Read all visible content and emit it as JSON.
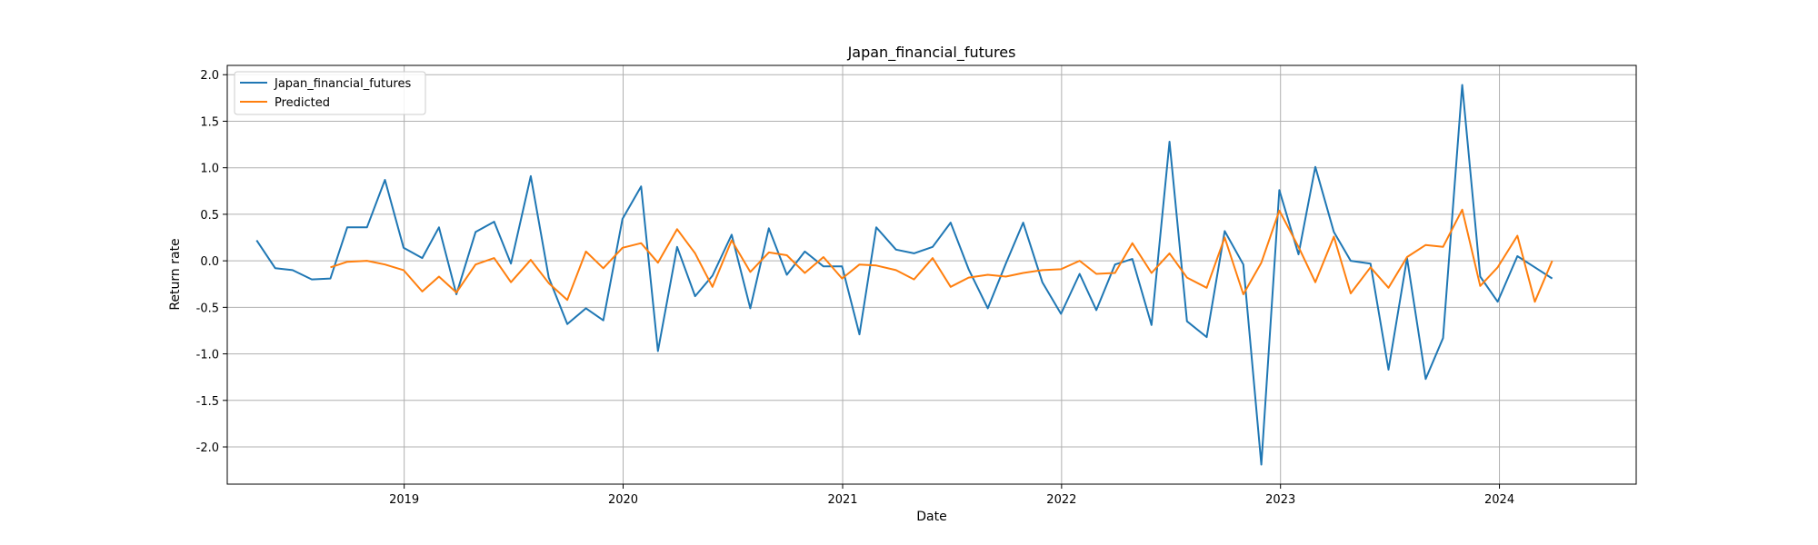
{
  "chart_data": {
    "type": "line",
    "title": "Japan_financial_futures",
    "xlabel": "Date",
    "ylabel": "Return rate",
    "xlim": [
      "2018-03-12",
      "2024-08-16"
    ],
    "ylim": [
      -2.4,
      2.1
    ],
    "x_ticks": [
      "2019",
      "2020",
      "2021",
      "2022",
      "2023",
      "2024"
    ],
    "y_ticks": [
      "-2.0",
      "-1.5",
      "-1.0",
      "-0.5",
      "0.0",
      "0.5",
      "1.0",
      "1.5",
      "2.0"
    ],
    "grid": true,
    "legend_position": "top-left",
    "series": [
      {
        "name": "Japan_financial_futures",
        "color": "#1f77b4",
        "x": [
          "2018-04-30",
          "2018-05-31",
          "2018-06-29",
          "2018-07-31",
          "2018-08-31",
          "2018-09-28",
          "2018-10-31",
          "2018-11-30",
          "2018-12-31",
          "2019-01-31",
          "2019-02-28",
          "2019-03-29",
          "2019-04-30",
          "2019-05-31",
          "2019-06-28",
          "2019-07-31",
          "2019-08-30",
          "2019-09-30",
          "2019-10-31",
          "2019-11-29",
          "2019-12-31",
          "2020-01-31",
          "2020-02-28",
          "2020-03-31",
          "2020-04-30",
          "2020-05-29",
          "2020-06-30",
          "2020-07-31",
          "2020-08-31",
          "2020-09-30",
          "2020-10-30",
          "2020-11-30",
          "2020-12-31",
          "2021-01-29",
          "2021-02-26",
          "2021-03-31",
          "2021-04-30",
          "2021-05-31",
          "2021-06-30",
          "2021-07-30",
          "2021-08-31",
          "2021-09-30",
          "2021-10-29",
          "2021-11-30",
          "2021-12-31",
          "2022-01-31",
          "2022-02-28",
          "2022-03-31",
          "2022-04-29",
          "2022-05-31",
          "2022-06-30",
          "2022-07-29",
          "2022-08-31",
          "2022-09-30",
          "2022-10-31",
          "2022-11-30",
          "2022-12-30",
          "2023-01-31",
          "2023-02-28",
          "2023-03-31",
          "2023-04-28",
          "2023-05-31",
          "2023-06-30",
          "2023-07-31",
          "2023-08-31",
          "2023-09-29",
          "2023-10-31",
          "2023-11-30",
          "2023-12-29",
          "2024-01-31",
          "2024-02-29",
          "2024-03-29"
        ],
        "values": [
          0.22,
          -0.08,
          -0.1,
          -0.2,
          -0.19,
          0.36,
          0.36,
          0.87,
          0.14,
          0.03,
          0.36,
          -0.36,
          0.31,
          0.42,
          -0.03,
          0.91,
          -0.18,
          -0.68,
          -0.51,
          -0.64,
          0.45,
          0.8,
          -0.97,
          0.15,
          -0.38,
          -0.16,
          0.28,
          -0.51,
          0.35,
          -0.15,
          0.1,
          -0.06,
          -0.06,
          -0.79,
          0.36,
          0.12,
          0.08,
          0.15,
          0.41,
          -0.09,
          -0.51,
          -0.03,
          0.41,
          -0.23,
          -0.57,
          -0.14,
          -0.53,
          -0.04,
          0.02,
          -0.69,
          1.28,
          -0.65,
          -0.82,
          0.32,
          -0.04,
          -2.19,
          0.76,
          0.07,
          1.01,
          0.31,
          0.0,
          -0.03,
          -1.17,
          0.03,
          -1.27,
          -0.83,
          1.89,
          -0.17,
          -0.44,
          0.05,
          -0.07,
          -0.19
        ]
      },
      {
        "name": "Predicted",
        "color": "#ff7f0e",
        "x": [
          "2018-08-31",
          "2018-09-28",
          "2018-10-31",
          "2018-11-30",
          "2018-12-31",
          "2019-01-31",
          "2019-02-28",
          "2019-03-29",
          "2019-04-30",
          "2019-05-31",
          "2019-06-28",
          "2019-07-31",
          "2019-08-30",
          "2019-09-30",
          "2019-10-31",
          "2019-11-29",
          "2019-12-31",
          "2020-01-31",
          "2020-02-28",
          "2020-03-31",
          "2020-04-30",
          "2020-05-29",
          "2020-06-30",
          "2020-07-31",
          "2020-08-31",
          "2020-09-30",
          "2020-10-30",
          "2020-11-30",
          "2020-12-31",
          "2021-01-29",
          "2021-02-26",
          "2021-03-31",
          "2021-04-30",
          "2021-05-31",
          "2021-06-30",
          "2021-07-30",
          "2021-08-31",
          "2021-09-30",
          "2021-10-29",
          "2021-11-30",
          "2021-12-31",
          "2022-01-31",
          "2022-02-28",
          "2022-03-31",
          "2022-04-29",
          "2022-05-31",
          "2022-06-30",
          "2022-07-29",
          "2022-08-31",
          "2022-09-30",
          "2022-10-31",
          "2022-11-30",
          "2022-12-30",
          "2023-01-31",
          "2023-02-28",
          "2023-03-31",
          "2023-04-28",
          "2023-05-31",
          "2023-06-30",
          "2023-07-31",
          "2023-08-31",
          "2023-09-29",
          "2023-10-31",
          "2023-11-30",
          "2023-12-29",
          "2024-01-31",
          "2024-02-29",
          "2024-03-29"
        ],
        "values": [
          -0.07,
          -0.01,
          0.0,
          -0.04,
          -0.1,
          -0.33,
          -0.17,
          -0.34,
          -0.04,
          0.03,
          -0.23,
          0.01,
          -0.24,
          -0.42,
          0.1,
          -0.08,
          0.14,
          0.19,
          -0.02,
          0.34,
          0.08,
          -0.28,
          0.22,
          -0.12,
          0.09,
          0.06,
          -0.13,
          0.04,
          -0.19,
          -0.04,
          -0.05,
          -0.1,
          -0.2,
          0.03,
          -0.28,
          -0.18,
          -0.15,
          -0.17,
          -0.13,
          -0.1,
          -0.09,
          0.0,
          -0.14,
          -0.13,
          0.19,
          -0.13,
          0.08,
          -0.18,
          -0.29,
          0.25,
          -0.36,
          -0.02,
          0.54,
          0.15,
          -0.23,
          0.26,
          -0.35,
          -0.07,
          -0.29,
          0.04,
          0.17,
          0.15,
          0.55,
          -0.27,
          -0.07,
          0.27,
          -0.44,
          0.0
        ]
      }
    ]
  }
}
